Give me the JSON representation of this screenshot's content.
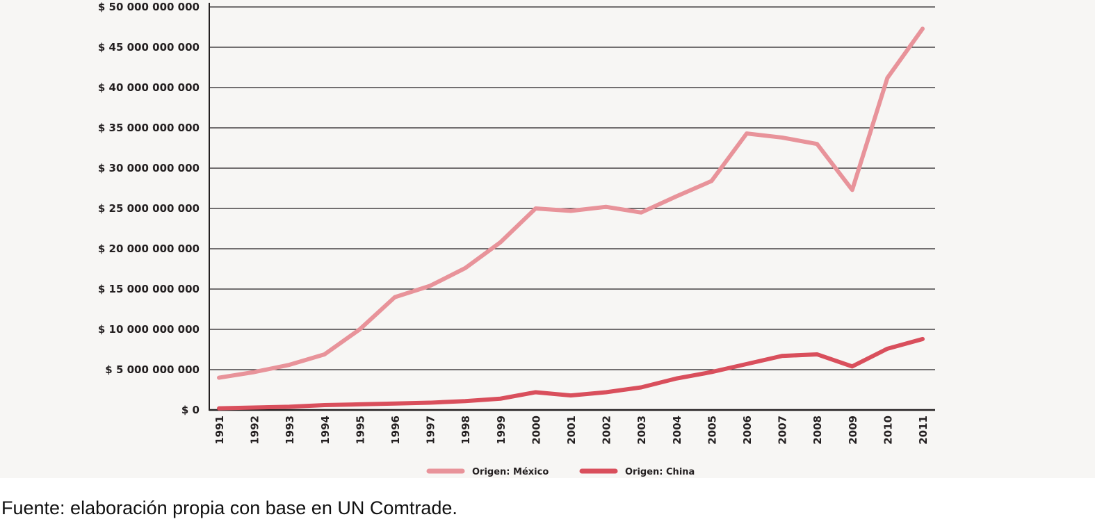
{
  "chart_data": {
    "type": "line",
    "title": "",
    "xlabel": "",
    "ylabel": "",
    "x": [
      1991,
      1992,
      1993,
      1994,
      1995,
      1996,
      1997,
      1998,
      1999,
      2000,
      2001,
      2002,
      2003,
      2004,
      2005,
      2006,
      2007,
      2008,
      2009,
      2010,
      2011
    ],
    "ylim": [
      0,
      50000000000
    ],
    "yticks": [
      0,
      5000000000,
      10000000000,
      15000000000,
      20000000000,
      25000000000,
      30000000000,
      35000000000,
      40000000000,
      45000000000,
      50000000000
    ],
    "ytick_labels": [
      "$ 0",
      "$ 5 000 000 000",
      "$ 10 000 000 000",
      "$ 15 000 000 000",
      "$ 20 000 000 000",
      "$ 25 000 000 000",
      "$ 30 000 000 000",
      "$ 35 000 000 000",
      "$ 40 000 000 000",
      "$ 45 000 000 000",
      "$ 50 000 000 000"
    ],
    "grid": "horizontal",
    "legend_placement": "bottom",
    "series": [
      {
        "name": "Origen: México",
        "color": "#e8939a",
        "values": [
          4000000000,
          4700000000,
          5600000000,
          6900000000,
          10000000000,
          14000000000,
          15400000000,
          17600000000,
          20800000000,
          25000000000,
          24700000000,
          25200000000,
          24500000000,
          26500000000,
          28400000000,
          34300000000,
          33800000000,
          33000000000,
          27300000000,
          41200000000,
          47300000000
        ]
      },
      {
        "name": "Origen: China",
        "color": "#d94f5c",
        "values": [
          200000000,
          300000000,
          400000000,
          600000000,
          700000000,
          800000000,
          900000000,
          1100000000,
          1400000000,
          2200000000,
          1800000000,
          2200000000,
          2800000000,
          3900000000,
          4700000000,
          5700000000,
          6700000000,
          6900000000,
          5400000000,
          7600000000,
          8800000000
        ]
      }
    ]
  },
  "source": "Fuente: elaboración propia con base en UN Comtrade."
}
